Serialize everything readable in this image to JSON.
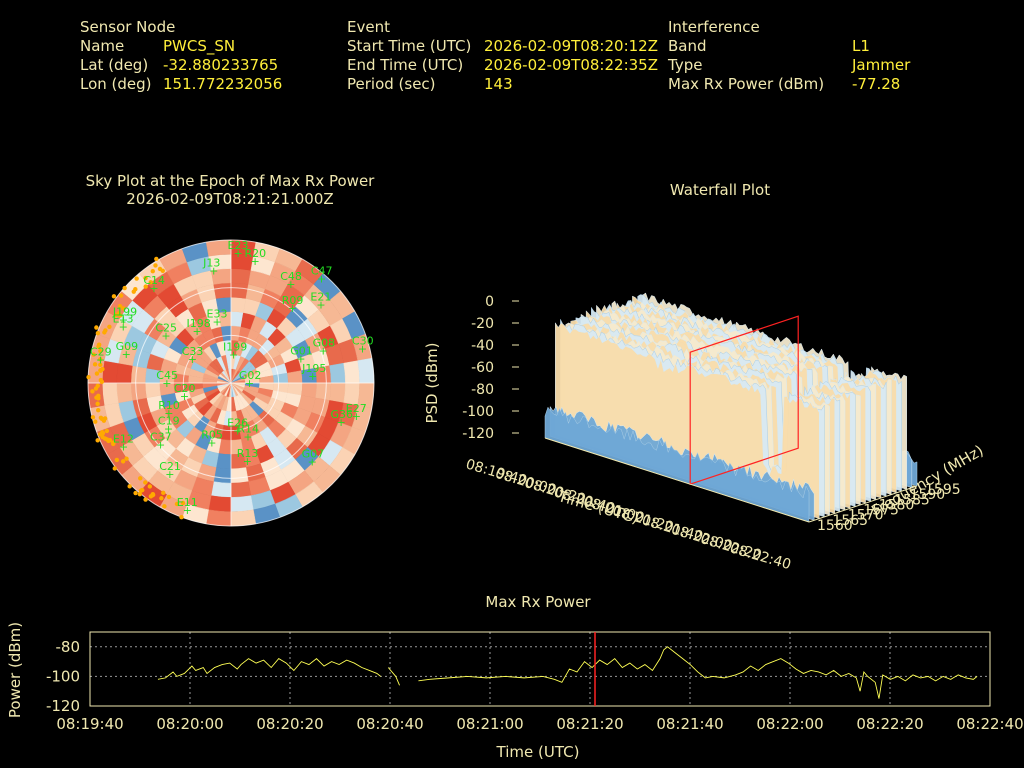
{
  "header": {
    "sensor": {
      "title": "Sensor Node",
      "name_label": "Name",
      "name_value": "PWCS_SN",
      "lat_label": "Lat (deg)",
      "lat_value": "-32.880233765",
      "lon_label": "Lon (deg)",
      "lon_value": "151.772232056"
    },
    "event": {
      "title": "Event",
      "start_label": "Start Time (UTC)",
      "start_value": "2026-02-09T08:20:12Z",
      "end_label": "End Time (UTC)",
      "end_value": "2026-02-09T08:22:35Z",
      "period_label": "Period (sec)",
      "period_value": "143"
    },
    "interference": {
      "title": "Interference",
      "band_label": "Band",
      "band_value": "L1",
      "type_label": "Type",
      "type_value": "Jammer",
      "power_label": "Max Rx Power (dBm)",
      "power_value": "-77.28"
    }
  },
  "colors": {
    "label": "#f0e8b0",
    "value": "#ffef3a",
    "sat": "#22dd22",
    "track": "#ffaa00",
    "power_line": "#ffff55",
    "marker": "#ff2222"
  },
  "chart_data": [
    {
      "type": "scatter",
      "title": "Sky Plot at the Epoch of Max Rx Power",
      "subtitle": "2026-02-09T08:21:21.000Z",
      "satellites": [
        {
          "id": "E23",
          "az": 2,
          "el": 8
        },
        {
          "id": "R20",
          "az": 10,
          "el": 12
        },
        {
          "id": "J13",
          "az": 350,
          "el": 18
        },
        {
          "id": "C48",
          "az": 30,
          "el": 18
        },
        {
          "id": "C47",
          "az": 40,
          "el": 4
        },
        {
          "id": "E21",
          "az": 48,
          "el": 16
        },
        {
          "id": "R09",
          "az": 38,
          "el": 30
        },
        {
          "id": "C14",
          "az": 320,
          "el": 12
        },
        {
          "id": "E13",
          "az": 297,
          "el": 12
        },
        {
          "id": "E33",
          "az": 345,
          "el": 50
        },
        {
          "id": "I198",
          "az": 325,
          "el": 50
        },
        {
          "id": "C25",
          "az": 305,
          "el": 38
        },
        {
          "id": "C30",
          "az": 75,
          "el": 6
        },
        {
          "id": "G08",
          "az": 70,
          "el": 30
        },
        {
          "id": "G01",
          "az": 70,
          "el": 45
        },
        {
          "id": "J195",
          "az": 85,
          "el": 40
        },
        {
          "id": "J199",
          "az": 300,
          "el": 10
        },
        {
          "id": "G09",
          "az": 285,
          "el": 20
        },
        {
          "id": "C29",
          "az": 280,
          "el": 5
        },
        {
          "id": "I199",
          "az": 0,
          "el": 72
        },
        {
          "id": "C33",
          "az": 300,
          "el": 60
        },
        {
          "id": "C45",
          "az": 270,
          "el": 48
        },
        {
          "id": "G02",
          "az": 90,
          "el": 80
        },
        {
          "id": "C20",
          "az": 255,
          "el": 58
        },
        {
          "id": "R10",
          "az": 245,
          "el": 45
        },
        {
          "id": "C19",
          "az": 235,
          "el": 40
        },
        {
          "id": "C37",
          "az": 230,
          "el": 30
        },
        {
          "id": "R05",
          "az": 200,
          "el": 50
        },
        {
          "id": "E26",
          "az": 175,
          "el": 60
        },
        {
          "id": "R14",
          "az": 165,
          "el": 55
        },
        {
          "id": "G07",
          "az": 135,
          "el": 20
        },
        {
          "id": "G36",
          "az": 110,
          "el": 18
        },
        {
          "id": "E27",
          "az": 105,
          "el": 10
        },
        {
          "id": "C21",
          "az": 215,
          "el": 20
        },
        {
          "id": "E11",
          "az": 200,
          "el": 5
        },
        {
          "id": "E12",
          "az": 240,
          "el": 10
        },
        {
          "id": "R13",
          "az": 170,
          "el": 40
        }
      ]
    },
    {
      "type": "area",
      "title": "Waterfall Plot",
      "xlabel": "Time (UTC)",
      "ylabel": "Frequency (MHz)",
      "zlabel": "PSD (dBm)",
      "time_ticks": [
        "08:19:40",
        "08:20:00",
        "08:20:20",
        "08:20:40",
        "08:21:00",
        "08:21:20",
        "08:21:40",
        "08:22:00",
        "08:22:20",
        "08:22:40"
      ],
      "freq_ticks": [
        "1560",
        "1565",
        "1570",
        "1575",
        "1580",
        "1585",
        "1590",
        "1595"
      ],
      "psd_ticks": [
        "0",
        "-20",
        "-40",
        "-60",
        "-80",
        "-100",
        "-120"
      ],
      "zlim": [
        -120,
        0
      ],
      "freq_range": [
        1560,
        1595
      ],
      "marker_time": "08:21:21"
    },
    {
      "type": "line",
      "title": "Max Rx Power",
      "xlabel": "Time (UTC)",
      "ylabel": "Power (dBm)",
      "x_ticks": [
        "08:19:40",
        "08:20:00",
        "08:20:20",
        "08:20:40",
        "08:21:00",
        "08:21:20",
        "08:21:40",
        "08:22:00",
        "08:22:20",
        "08:22:40"
      ],
      "y_ticks": [
        "-80",
        "-100",
        "-120"
      ],
      "xlim_sec": [
        0,
        180
      ],
      "ylim": [
        -120,
        -70
      ],
      "marker_sec": 101,
      "grid": true,
      "points": [
        [
          18,
          -102
        ],
        [
          20,
          -101
        ],
        [
          22,
          -97
        ],
        [
          23,
          -100
        ],
        [
          25,
          -98
        ],
        [
          27,
          -93
        ],
        [
          28,
          -96
        ],
        [
          30,
          -94
        ],
        [
          31,
          -98
        ],
        [
          33,
          -94
        ],
        [
          35,
          -92
        ],
        [
          37,
          -91
        ],
        [
          39,
          -95
        ],
        [
          40,
          -92
        ],
        [
          42,
          -88
        ],
        [
          44,
          -91
        ],
        [
          46,
          -89
        ],
        [
          48,
          -94
        ],
        [
          50,
          -88
        ],
        [
          52,
          -91
        ],
        [
          54,
          -96
        ],
        [
          56,
          -90
        ],
        [
          58,
          -92
        ],
        [
          60,
          -88
        ],
        [
          62,
          -93
        ],
        [
          64,
          -90
        ],
        [
          66,
          -92
        ],
        [
          68,
          -89
        ],
        [
          70,
          -91
        ],
        [
          72,
          -94
        ],
        [
          74,
          -96
        ],
        [
          76,
          -98
        ],
        [
          77,
          -100
        ],
        [
          null,
          null
        ],
        [
          79,
          -94
        ],
        [
          81,
          -100
        ],
        [
          82,
          -106
        ],
        [
          null,
          null
        ],
        [
          87,
          -103
        ],
        [
          90,
          -102
        ],
        [
          95,
          -101
        ],
        [
          100,
          -100
        ],
        [
          105,
          -101
        ],
        [
          110,
          -100
        ],
        [
          115,
          -101
        ],
        [
          120,
          -100
        ],
        [
          123,
          -102
        ],
        [
          125,
          -104
        ],
        [
          127,
          -95
        ],
        [
          129,
          -97
        ],
        [
          131,
          -90
        ],
        [
          133,
          -94
        ],
        [
          135,
          -89
        ],
        [
          137,
          -92
        ],
        [
          139,
          -88
        ],
        [
          141,
          -94
        ],
        [
          143,
          -91
        ],
        [
          145,
          -95
        ],
        [
          147,
          -92
        ],
        [
          149,
          -96
        ],
        [
          151,
          -88
        ],
        [
          152,
          -82
        ],
        [
          153,
          -80
        ],
        [
          155,
          -84
        ],
        [
          157,
          -88
        ],
        [
          159,
          -92
        ],
        [
          161,
          -97
        ],
        [
          163,
          -101
        ],
        [
          165,
          -100
        ],
        [
          168,
          -101
        ],
        [
          171,
          -99
        ],
        [
          173,
          -97
        ],
        [
          175,
          -93
        ],
        [
          177,
          -96
        ],
        [
          179,
          -92
        ],
        [
          181,
          -90
        ],
        [
          183,
          -88
        ],
        [
          185,
          -91
        ],
        [
          187,
          -95
        ],
        [
          189,
          -98
        ],
        [
          191,
          -96
        ],
        [
          193,
          -97
        ],
        [
          195,
          -99
        ],
        [
          197,
          -96
        ],
        [
          199,
          -100
        ],
        [
          201,
          -98
        ],
        [
          203,
          -101
        ],
        [
          204,
          -110
        ],
        [
          205,
          -97
        ],
        [
          206,
          -100
        ],
        [
          208,
          -104
        ],
        [
          209,
          -115
        ],
        [
          210,
          -99
        ],
        [
          212,
          -102
        ],
        [
          214,
          -100
        ],
        [
          216,
          -103
        ],
        [
          218,
          -99
        ],
        [
          220,
          -101
        ],
        [
          222,
          -100
        ],
        [
          224,
          -103
        ],
        [
          226,
          -100
        ],
        [
          228,
          -102
        ],
        [
          230,
          -99
        ],
        [
          232,
          -101
        ],
        [
          234,
          -102
        ],
        [
          235,
          -100
        ]
      ]
    }
  ]
}
